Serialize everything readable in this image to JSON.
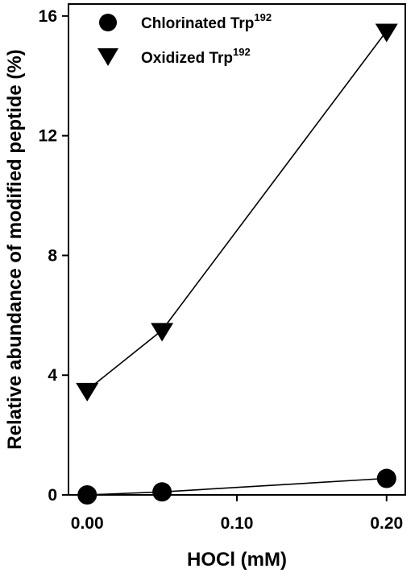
{
  "chart_data": {
    "type": "line",
    "xlabel": "HOCl (mM)",
    "ylabel": "Relative abundance of modified peptide (%)",
    "xlim": [
      -0.0125,
      0.2125
    ],
    "ylim": [
      0,
      16.4
    ],
    "xticks": [
      "0.00",
      "0.10",
      "0.20"
    ],
    "xtick_values": [
      0,
      0.1,
      0.2
    ],
    "yticks": [
      "0",
      "4",
      "8",
      "12",
      "16"
    ],
    "ytick_values": [
      0,
      4,
      8,
      12,
      16
    ],
    "legend_position": "top-left",
    "grid": false,
    "x": [
      0,
      0.05,
      0.2
    ],
    "series": [
      {
        "name": "Chlorinated Trp",
        "name_superscript": "192",
        "marker": "circle",
        "color": "#000000",
        "values": [
          0,
          0.1,
          0.55
        ]
      },
      {
        "name": "Oxidized Trp",
        "name_superscript": "192",
        "marker": "triangle-down",
        "color": "#000000",
        "values": [
          3.5,
          5.5,
          15.5
        ]
      }
    ]
  }
}
